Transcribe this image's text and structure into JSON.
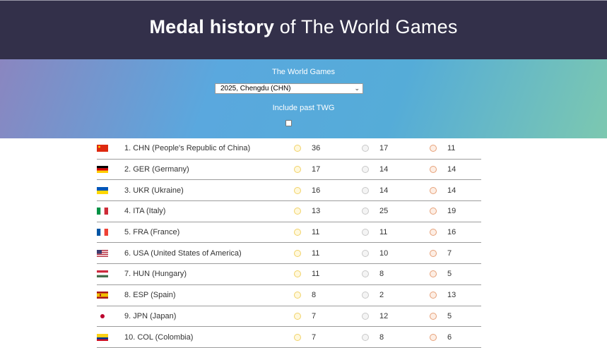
{
  "header": {
    "title_bold": "Medal history",
    "title_rest": " of The World Games"
  },
  "filter": {
    "games_label": "The World Games",
    "selected_games": "2025, Chengdu (CHN)",
    "past_label": "Include past TWG",
    "past_checked": false
  },
  "rows": [
    {
      "rank_country": "1. CHN (People's Republic of China)",
      "gold": "36",
      "silver": "17",
      "bronze": "11",
      "flag": "cn"
    },
    {
      "rank_country": "2. GER (Germany)",
      "gold": "17",
      "silver": "14",
      "bronze": "14",
      "flag": "de"
    },
    {
      "rank_country": "3. UKR (Ukraine)",
      "gold": "16",
      "silver": "14",
      "bronze": "14",
      "flag": "ua"
    },
    {
      "rank_country": "4. ITA (Italy)",
      "gold": "13",
      "silver": "25",
      "bronze": "19",
      "flag": "it"
    },
    {
      "rank_country": "5. FRA (France)",
      "gold": "11",
      "silver": "11",
      "bronze": "16",
      "flag": "fr"
    },
    {
      "rank_country": "6. USA (United States of America)",
      "gold": "11",
      "silver": "10",
      "bronze": "7",
      "flag": "us"
    },
    {
      "rank_country": "7. HUN (Hungary)",
      "gold": "11",
      "silver": "8",
      "bronze": "5",
      "flag": "hu"
    },
    {
      "rank_country": "8. ESP (Spain)",
      "gold": "8",
      "silver": "2",
      "bronze": "13",
      "flag": "es"
    },
    {
      "rank_country": "9. JPN (Japan)",
      "gold": "7",
      "silver": "12",
      "bronze": "5",
      "flag": "jp"
    },
    {
      "rank_country": "10. COL (Colombia)",
      "gold": "7",
      "silver": "8",
      "bronze": "6",
      "flag": "co"
    }
  ]
}
